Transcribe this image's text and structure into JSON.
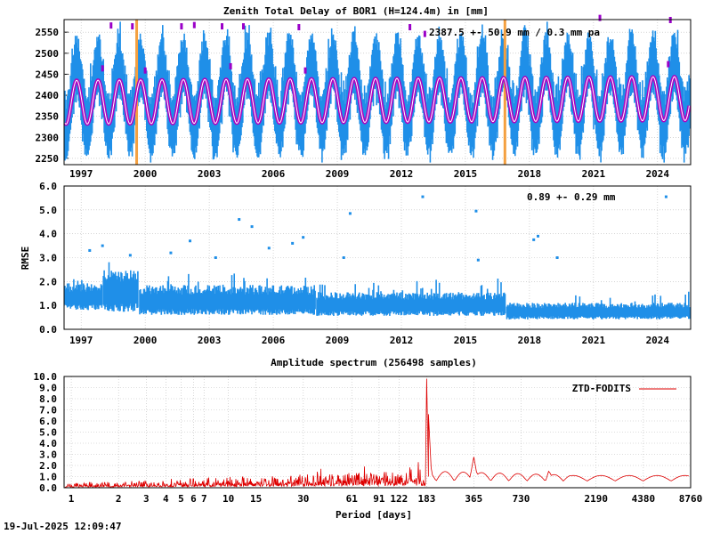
{
  "colors": {
    "ztd": "#1f8fe8",
    "model": "#b000c0",
    "model_core": "#ffffff",
    "outlier": "#9a00c8",
    "break": "#f4a040",
    "rmse": "#1f8fe8",
    "spectrum": "#dd0000"
  },
  "footer": {
    "timestamp": "19-Jul-2025 12:09:47"
  },
  "chart_data": [
    {
      "type": "scatter",
      "title": "Zenith Total Delay of BOR1 (H=124.4m) in [mm]",
      "annotation": "2387.5 +-  50.9 mm /  0.3 mm pa",
      "xlabel": "",
      "ylabel": "",
      "xlim": [
        1996.2,
        2025.55
      ],
      "ylim": [
        2235,
        2580
      ],
      "yticks": [
        2250,
        2300,
        2350,
        2400,
        2450,
        2500,
        2550
      ],
      "xticks": [
        1997,
        2000,
        2003,
        2006,
        2009,
        2012,
        2015,
        2018,
        2021,
        2024
      ],
      "series": [
        {
          "role": "ztd",
          "mean": 2387.5,
          "sigma": 50.9,
          "trend_mm_per_year": 0.3,
          "annual_amplitude": 75,
          "reference_epoch": 1996.5
        },
        {
          "role": "model",
          "mean": 2387.5,
          "annual_amplitude": 52,
          "trend_mm_per_year": 0.3
        }
      ],
      "breaks": [
        1999.6,
        2016.85
      ],
      "outliers": [
        {
          "x": 1998.4,
          "y": 2567
        },
        {
          "x": 1999.4,
          "y": 2565
        },
        {
          "x": 2001.7,
          "y": 2565
        },
        {
          "x": 2002.3,
          "y": 2568
        },
        {
          "x": 2003.6,
          "y": 2565
        },
        {
          "x": 2004.6,
          "y": 2565
        },
        {
          "x": 2007.2,
          "y": 2563
        },
        {
          "x": 2012.4,
          "y": 2563
        },
        {
          "x": 2013.1,
          "y": 2547
        },
        {
          "x": 2021.3,
          "y": 2585
        },
        {
          "x": 2024.6,
          "y": 2580
        },
        {
          "x": 1998.0,
          "y": 2465
        },
        {
          "x": 2004.0,
          "y": 2470
        },
        {
          "x": 2007.5,
          "y": 2460
        },
        {
          "x": 2024.5,
          "y": 2475
        },
        {
          "x": 2000.0,
          "y": 2460
        }
      ]
    },
    {
      "type": "scatter",
      "title": "",
      "annotation": "0.89 +-  0.29 mm",
      "xlabel": "",
      "ylabel": "RMSE",
      "xlim": [
        1996.2,
        2025.55
      ],
      "ylim": [
        0.0,
        6.0
      ],
      "yticks": [
        0.0,
        1.0,
        2.0,
        3.0,
        4.0,
        5.0,
        6.0
      ],
      "xticks": [
        1997,
        2000,
        2003,
        2006,
        2009,
        2012,
        2015,
        2018,
        2021,
        2024
      ],
      "series": [
        {
          "role": "rmse",
          "segments": [
            {
              "from": 1996.2,
              "to": 1998.0,
              "center": 1.3,
              "spread": 0.45
            },
            {
              "from": 1998.0,
              "to": 1999.7,
              "center": 1.5,
              "spread": 0.7
            },
            {
              "from": 1999.7,
              "to": 2008.0,
              "center": 1.15,
              "spread": 0.5
            },
            {
              "from": 2008.0,
              "to": 2016.9,
              "center": 1.0,
              "spread": 0.4
            },
            {
              "from": 2016.9,
              "to": 2025.55,
              "center": 0.72,
              "spread": 0.28
            }
          ]
        }
      ],
      "outliers": [
        {
          "x": 2013.0,
          "y": 5.55
        },
        {
          "x": 2015.5,
          "y": 4.95
        },
        {
          "x": 2009.6,
          "y": 4.85
        },
        {
          "x": 2004.4,
          "y": 4.6
        },
        {
          "x": 2005.0,
          "y": 4.3
        },
        {
          "x": 1998.0,
          "y": 3.5
        },
        {
          "x": 1997.4,
          "y": 3.3
        },
        {
          "x": 2002.1,
          "y": 3.7
        },
        {
          "x": 2006.9,
          "y": 3.6
        },
        {
          "x": 2007.4,
          "y": 3.85
        },
        {
          "x": 2018.4,
          "y": 3.9
        },
        {
          "x": 2018.2,
          "y": 3.75
        },
        {
          "x": 2001.2,
          "y": 3.2
        },
        {
          "x": 2005.8,
          "y": 3.4
        },
        {
          "x": 2009.3,
          "y": 3.0
        },
        {
          "x": 2015.6,
          "y": 2.9
        },
        {
          "x": 2024.4,
          "y": 5.55
        },
        {
          "x": 1999.3,
          "y": 3.1
        },
        {
          "x": 2003.3,
          "y": 3.0
        },
        {
          "x": 2019.3,
          "y": 3.0
        }
      ]
    },
    {
      "type": "line",
      "title": "Amplitude spectrum (256498 samples)",
      "xlabel": "Period [days]",
      "ylabel": "",
      "xscale": "log",
      "xlim": [
        0.9,
        8760
      ],
      "ylim": [
        0.0,
        10.0
      ],
      "yticks": [
        0.0,
        1.0,
        2.0,
        3.0,
        4.0,
        5.0,
        6.0,
        7.0,
        8.0,
        9.0,
        10.0
      ],
      "xticks": [
        1,
        2,
        3,
        4,
        5,
        6,
        7,
        10,
        15,
        30,
        61,
        91,
        122,
        183,
        365,
        730,
        2190,
        4380,
        8760
      ],
      "legend_position": "top-right",
      "series": [
        {
          "name": "ZTD-FODITS",
          "peaks": [
            {
              "period": 1,
              "amplitude": 0.5
            },
            {
              "period": 183,
              "amplitude": 9.8
            },
            {
              "period": 365,
              "amplitude": 2.8
            },
            {
              "period": 61,
              "amplitude": 3.0
            },
            {
              "period": 91,
              "amplitude": 2.4
            },
            {
              "period": 122,
              "amplitude": 2.6
            },
            {
              "period": 730,
              "amplitude": 1.2
            },
            {
              "period": 1100,
              "amplitude": 1.6
            },
            {
              "period": 2190,
              "amplitude": 1.5
            },
            {
              "period": 5000,
              "amplitude": 1.4
            },
            {
              "period": 8760,
              "amplitude": 0.9
            }
          ]
        }
      ]
    }
  ]
}
